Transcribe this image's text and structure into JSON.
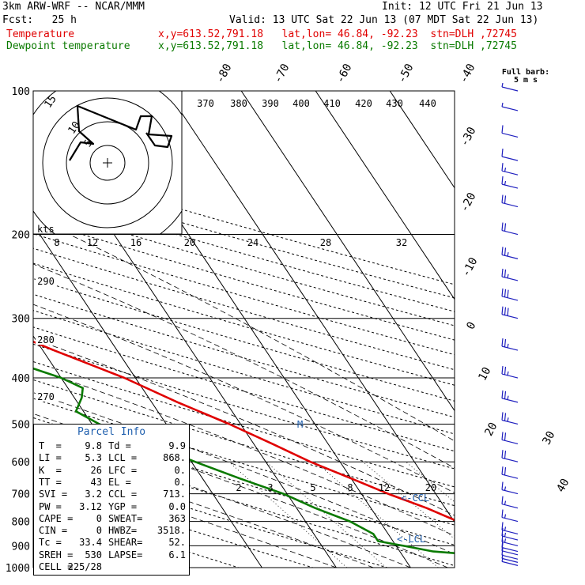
{
  "header": {
    "model": "3km ARW-WRF -- NCAR/MMM",
    "init": "Init: 12 UTC Fri 21 Jun 13",
    "fcst": "Fcst:   25 h",
    "valid": "Valid: 13 UTC Sat 22 Jun 13 (07 MDT Sat 22 Jun 13)",
    "temp_label": "Temperature",
    "temp_info": "x,y=613.52,791.18   lat,lon= 46.84, -92.23  stn=DLH ,72745",
    "dew_label": "Dewpoint temperature",
    "dew_info": "x,y=613.52,791.18   lat,lon= 46.84, -92.23  stn=DLH ,72745"
  },
  "colors": {
    "temperature": "#e00000",
    "dewpoint": "#0a7a00",
    "wind_barbs": "#1f1fbf",
    "annotation": "#1f5fae"
  },
  "chart_data": {
    "type": "line",
    "title": "",
    "y_axis": "pressure (hPa), log scale",
    "pressure_levels": [
      100,
      200,
      300,
      400,
      500,
      600,
      700,
      800,
      900,
      1000
    ],
    "temperature_tick_labels": [
      "-80",
      "-70",
      "-60",
      "-50",
      "-40",
      "-30",
      "-20",
      "-10",
      "0",
      "10",
      "20",
      "30",
      "40"
    ],
    "theta_labels": [
      "370",
      "380",
      "390",
      "400",
      "410",
      "420",
      "430",
      "440",
      "290",
      "280",
      "270"
    ],
    "mixing_ratio_labels": [
      "2",
      "3",
      "5",
      "8",
      "12",
      "20"
    ],
    "hodograph": {
      "units": "kts",
      "ring_labels": [
        "5",
        "10",
        "15"
      ],
      "scale_labels": [
        "8",
        "12",
        "16",
        "20",
        "24",
        "28",
        "32"
      ]
    },
    "wind_header": "Full barb:",
    "wind_units": "5 m s",
    "annotations": [
      "<-CCL",
      "<-LCL",
      "M"
    ],
    "series": [
      {
        "name": "Temperature",
        "points": [
          {
            "p": 1000,
            "t": 9.9
          },
          {
            "p": 970,
            "t": 9.8
          },
          {
            "p": 950,
            "t": 12.0
          },
          {
            "p": 925,
            "t": 15.5
          },
          {
            "p": 900,
            "t": 15.0
          },
          {
            "p": 850,
            "t": 13.0
          },
          {
            "p": 800,
            "t": 10.5
          },
          {
            "p": 750,
            "t": 7.5
          },
          {
            "p": 700,
            "t": 3.6
          },
          {
            "p": 650,
            "t": 0.0
          },
          {
            "p": 600,
            "t": -4.0
          },
          {
            "p": 550,
            "t": -7.5
          },
          {
            "p": 500,
            "t": -11.5
          },
          {
            "p": 450,
            "t": -16.5
          },
          {
            "p": 400,
            "t": -21.5
          },
          {
            "p": 350,
            "t": -28.5
          },
          {
            "p": 300,
            "t": -36.0
          },
          {
            "p": 250,
            "t": -45.5
          },
          {
            "p": 200,
            "t": -55.5
          },
          {
            "p": 180,
            "t": -58.0
          },
          {
            "p": 160,
            "t": -58.0
          },
          {
            "p": 150,
            "t": -56.5
          },
          {
            "p": 140,
            "t": -57.5
          },
          {
            "p": 120,
            "t": -60.0
          },
          {
            "p": 100,
            "t": -60.0
          }
        ]
      },
      {
        "name": "Dewpoint temperature",
        "points": [
          {
            "p": 1000,
            "t": 9.8
          },
          {
            "p": 980,
            "t": 7.5
          },
          {
            "p": 960,
            "t": 9.0
          },
          {
            "p": 940,
            "t": 10.0
          },
          {
            "p": 925,
            "t": 4.5
          },
          {
            "p": 900,
            "t": 1.0
          },
          {
            "p": 880,
            "t": -2.0
          },
          {
            "p": 850,
            "t": -2.0
          },
          {
            "p": 800,
            "t": -4.0
          },
          {
            "p": 750,
            "t": -7.5
          },
          {
            "p": 700,
            "t": -10.5
          },
          {
            "p": 650,
            "t": -15.0
          },
          {
            "p": 600,
            "t": -19.5
          },
          {
            "p": 550,
            "t": -24.0
          },
          {
            "p": 500,
            "t": -29.0
          },
          {
            "p": 470,
            "t": -31.0
          },
          {
            "p": 440,
            "t": -29.0
          },
          {
            "p": 420,
            "t": -28.0
          },
          {
            "p": 400,
            "t": -30.0
          },
          {
            "p": 370,
            "t": -35.0
          },
          {
            "p": 350,
            "t": -38.0
          },
          {
            "p": 300,
            "t": -46.0
          },
          {
            "p": 250,
            "t": -55.0
          },
          {
            "p": 220,
            "t": -60.0
          },
          {
            "p": 200,
            "t": -64.0
          },
          {
            "p": 180,
            "t": -68.0
          },
          {
            "p": 160,
            "t": -74.0
          },
          {
            "p": 150,
            "t": -76.0
          },
          {
            "p": 140,
            "t": -77.0
          },
          {
            "p": 130,
            "t": -77.0
          },
          {
            "p": 120,
            "t": -79.0
          },
          {
            "p": 100,
            "t": -84.0
          }
        ]
      }
    ],
    "wind_profile": [
      {
        "p": 990,
        "speed_kt": 5
      },
      {
        "p": 975,
        "speed_kt": 5
      },
      {
        "p": 960,
        "speed_kt": 10
      },
      {
        "p": 940,
        "speed_kt": 10
      },
      {
        "p": 925,
        "speed_kt": 10
      },
      {
        "p": 900,
        "speed_kt": 15
      },
      {
        "p": 875,
        "speed_kt": 15
      },
      {
        "p": 850,
        "speed_kt": 15
      },
      {
        "p": 800,
        "speed_kt": 15
      },
      {
        "p": 750,
        "speed_kt": 15
      },
      {
        "p": 700,
        "speed_kt": 15
      },
      {
        "p": 650,
        "speed_kt": 20
      },
      {
        "p": 600,
        "speed_kt": 20
      },
      {
        "p": 550,
        "speed_kt": 20
      },
      {
        "p": 500,
        "speed_kt": 25
      },
      {
        "p": 450,
        "speed_kt": 25
      },
      {
        "p": 400,
        "speed_kt": 25
      },
      {
        "p": 350,
        "speed_kt": 25
      },
      {
        "p": 300,
        "speed_kt": 30
      },
      {
        "p": 275,
        "speed_kt": 30
      },
      {
        "p": 250,
        "speed_kt": 25
      },
      {
        "p": 225,
        "speed_kt": 25
      },
      {
        "p": 200,
        "speed_kt": 20
      },
      {
        "p": 175,
        "speed_kt": 20
      },
      {
        "p": 160,
        "speed_kt": 15
      },
      {
        "p": 150,
        "speed_kt": 15
      },
      {
        "p": 140,
        "speed_kt": 10
      },
      {
        "p": 125,
        "speed_kt": 10
      },
      {
        "p": 110,
        "speed_kt": 5
      },
      {
        "p": 100,
        "speed_kt": 5
      }
    ]
  },
  "parcel_info": {
    "title": "Parcel Info",
    "rows": [
      {
        "l1": "T  =",
        "v1": "9.8",
        "l2": "Td =",
        "v2": "9.9"
      },
      {
        "l1": "LI =",
        "v1": "5.3",
        "l2": "LCL =",
        "v2": "868."
      },
      {
        "l1": "K  =",
        "v1": "26",
        "l2": "LFC =",
        "v2": "0."
      },
      {
        "l1": "TT =",
        "v1": "43",
        "l2": "EL =",
        "v2": "0."
      },
      {
        "l1": "SVI =",
        "v1": "3.2",
        "l2": "CCL =",
        "v2": "713."
      },
      {
        "l1": "PW =",
        "v1": "3.12",
        "l2": "YGP =",
        "v2": "0.0"
      },
      {
        "l1": "CAPE =",
        "v1": "0",
        "l2": "SWEAT=",
        "v2": "363"
      },
      {
        "l1": "CIN =",
        "v1": "0",
        "l2": "HWBZ=",
        "v2": "3518."
      },
      {
        "l1": "Tc =",
        "v1": "33.4",
        "l2": "SHEAR=",
        "v2": "52."
      },
      {
        "l1": "SREH =",
        "v1": "530",
        "l2": "LAPSE=",
        "v2": "6.1"
      },
      {
        "l1": "CELL =",
        "v1": "225/28",
        "l2": "",
        "v2": ""
      }
    ]
  }
}
